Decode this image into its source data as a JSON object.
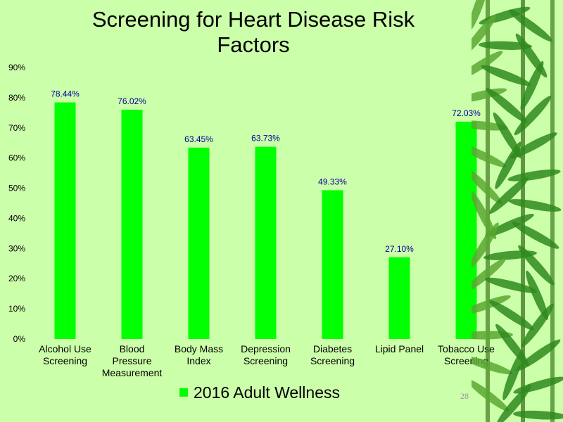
{
  "slide": {
    "page_number": "28",
    "colors": {
      "background": "#ccffaa",
      "bar": "#00ff00",
      "label": "#000099",
      "bamboo": "#2f8a1e"
    }
  },
  "chart_data": {
    "type": "bar",
    "title": "Screening for Heart Disease Risk Factors",
    "categories": [
      [
        "Alcohol Use",
        "Screening"
      ],
      [
        "Blood",
        "Pressure",
        "Measurement"
      ],
      [
        "Body Mass",
        "Index"
      ],
      [
        "Depression",
        "Screening"
      ],
      [
        "Diabetes",
        "Screening"
      ],
      [
        "Lipid Panel"
      ],
      [
        "Tobacco Use",
        "Screening"
      ]
    ],
    "series": [
      {
        "name": "2016 Adult Wellness",
        "values": [
          78.44,
          76.02,
          63.45,
          63.73,
          49.33,
          27.1,
          72.03
        ],
        "labels": [
          "78.44%",
          "76.02%",
          "63.45%",
          "63.73%",
          "49.33%",
          "27.10%",
          "72.03%"
        ]
      }
    ],
    "yticks": [
      "0%",
      "10%",
      "20%",
      "30%",
      "40%",
      "50%",
      "60%",
      "70%",
      "80%",
      "90%"
    ],
    "ylim": [
      0,
      90
    ],
    "grid": false,
    "legend_position": "bottom"
  }
}
